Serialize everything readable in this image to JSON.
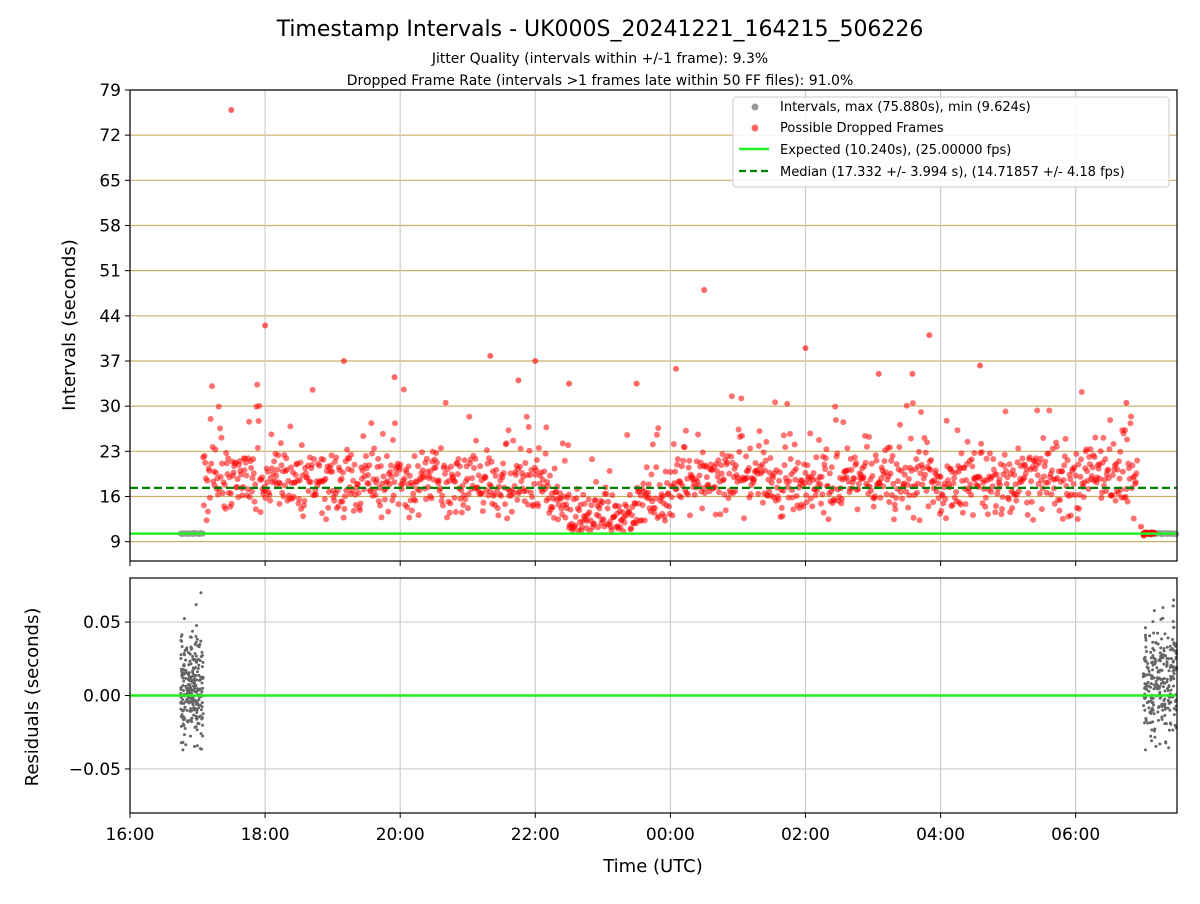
{
  "title": "Timestamp Intervals - UK000S_20241221_164215_506226",
  "subtitle_1": "Jitter Quality (intervals within +/-1 frame): 9.3%",
  "subtitle_2": "Dropped Frame Rate (intervals >1 frames late within 50 FF files): 91.0%",
  "colors": {
    "intervals": "#999999",
    "dropped": "#ff0000",
    "expected": "#22ee22",
    "median": "#008000",
    "hgrid": "#c8b26a",
    "vgrid": "#cccccc",
    "residuals": "#666666"
  },
  "chart_data": [
    {
      "type": "scatter",
      "name": "intervals",
      "ylabel": "Intervals (seconds)",
      "xlim": [
        "16:00",
        "07:30"
      ],
      "ylim": [
        6,
        79
      ],
      "yticks": [
        "9",
        "16",
        "23",
        "30",
        "37",
        "44",
        "51",
        "58",
        "65",
        "72",
        "79"
      ],
      "xticks": [
        "16:00",
        "18:00",
        "20:00",
        "22:00",
        "00:00",
        "02:00",
        "04:00",
        "06:00"
      ],
      "grid": true,
      "legend_position": "top-right",
      "legend": [
        "Intervals, max (75.880s), min (9.624s)",
        "Possible Dropped Frames",
        "Expected (10.240s), (25.00000 fps)",
        "Median (17.332 +/- 3.994 s), (14.71857 +/- 4.18 fps)"
      ],
      "expected_interval": 10.24,
      "median_interval": 17.332,
      "series": [
        {
          "name": "Intervals, max (75.880s), min (9.624s)",
          "segments": [
            {
              "x_start": "16:45",
              "x_end": "17:05",
              "y": 10.24
            },
            {
              "x_start": "07:00",
              "x_end": "07:30",
              "y": 10.24
            }
          ]
        },
        {
          "name": "Possible Dropped Frames",
          "note_bands": [
            {
              "x_start": "17:05",
              "x_end": "22:10",
              "y_center": 18.5
            },
            {
              "x_start": "22:10",
              "x_end": "22:30",
              "y_center": 16.5
            },
            {
              "x_start": "22:30",
              "x_end": "23:30",
              "y_center": 12.5
            },
            {
              "x_start": "23:30",
              "x_end": "00:00",
              "y_center": 15.5
            },
            {
              "x_start": "00:00",
              "x_end": "06:55",
              "y_center": 18.5
            }
          ],
          "outliers": [
            {
              "x": "17:30",
              "y": 75.9
            },
            {
              "x": "18:00",
              "y": 42.5
            },
            {
              "x": "19:10",
              "y": 37.0
            },
            {
              "x": "19:55",
              "y": 34.5
            },
            {
              "x": "21:20",
              "y": 37.8
            },
            {
              "x": "21:45",
              "y": 34.0
            },
            {
              "x": "22:00",
              "y": 37.0
            },
            {
              "x": "22:30",
              "y": 33.5
            },
            {
              "x": "23:30",
              "y": 33.5
            },
            {
              "x": "00:05",
              "y": 35.8
            },
            {
              "x": "00:30",
              "y": 48.0
            },
            {
              "x": "02:00",
              "y": 39.0
            },
            {
              "x": "03:05",
              "y": 35.0
            },
            {
              "x": "03:35",
              "y": 35.0
            },
            {
              "x": "03:50",
              "y": 41.0
            },
            {
              "x": "04:35",
              "y": 36.3
            },
            {
              "x": "06:45",
              "y": 30.5
            }
          ],
          "tail": {
            "x_start": "07:00",
            "x_end": "07:10",
            "y": 10.3
          }
        }
      ]
    },
    {
      "type": "scatter",
      "name": "residuals",
      "xlabel": "Time (UTC)",
      "ylabel": "Residuals (seconds)",
      "xlim": [
        "16:00",
        "07:30"
      ],
      "ylim": [
        -0.08,
        0.08
      ],
      "yticks": [
        "−0.05",
        "0.00",
        "0.05"
      ],
      "xticks": [
        "16:00",
        "18:00",
        "20:00",
        "22:00",
        "00:00",
        "02:00",
        "04:00",
        "06:00"
      ],
      "grid": true,
      "zero_line": 0.0,
      "clusters": [
        {
          "x_start": "16:45",
          "x_end": "17:05",
          "y_min": -0.037,
          "y_max": 0.07
        },
        {
          "x_start": "07:00",
          "x_end": "07:30",
          "y_min": -0.037,
          "y_max": 0.065
        }
      ]
    }
  ]
}
